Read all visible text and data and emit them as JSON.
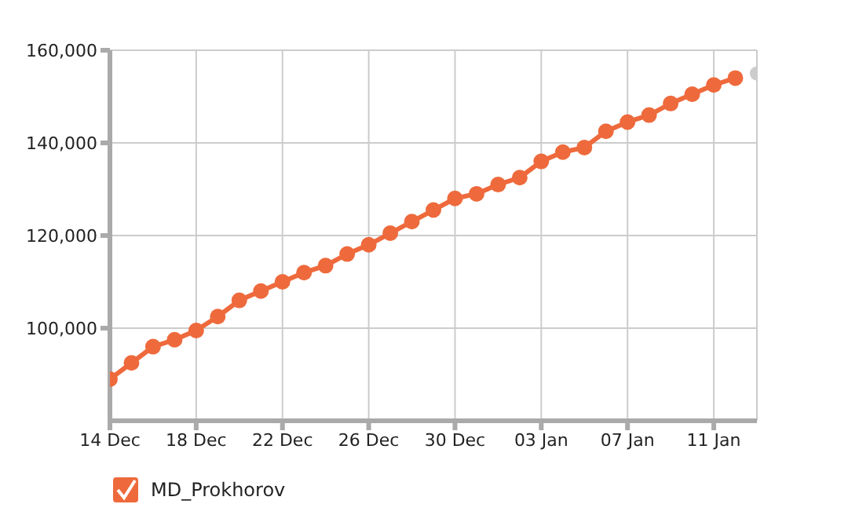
{
  "chart_data": {
    "type": "line",
    "legend": "bottom left",
    "grid": true,
    "marker": "circle",
    "line_style": "solid",
    "categories": [
      "14 Dec",
      null,
      null,
      null,
      "18 Dec",
      null,
      null,
      null,
      "22 Dec",
      null,
      null,
      null,
      "26 Dec",
      null,
      null,
      null,
      "30 Dec",
      null,
      null,
      null,
      "03 Jan",
      null,
      null,
      null,
      "07 Jan",
      null,
      null,
      null,
      "11 Jan",
      null,
      null
    ],
    "series": [
      {
        "name": "MD_Prokhorov",
        "color": "#ee6a3c",
        "values": [
          89000,
          92500,
          96000,
          97500,
          99500,
          102500,
          106000,
          108000,
          110000,
          112000,
          113500,
          116000,
          118000,
          120500,
          123000,
          125500,
          128000,
          129000,
          131000,
          132500,
          136000,
          138000,
          139000,
          142500,
          144500,
          146000,
          148500,
          150500,
          152500,
          154000,
          null
        ]
      },
      {
        "type": "scatter",
        "color": "#cccccc",
        "values": [
          null,
          null,
          null,
          null,
          null,
          null,
          null,
          null,
          null,
          null,
          null,
          null,
          null,
          null,
          null,
          null,
          null,
          null,
          null,
          null,
          null,
          null,
          null,
          null,
          null,
          null,
          null,
          null,
          null,
          null,
          155000
        ]
      }
    ],
    "ylim": [
      80000,
      160000
    ],
    "yticks": [
      {
        "value": 100000,
        "label": "100,000"
      },
      {
        "value": 120000,
        "label": "120,000"
      },
      {
        "value": 140000,
        "label": "140,000"
      },
      {
        "value": 160000,
        "label": "160,000"
      }
    ]
  }
}
